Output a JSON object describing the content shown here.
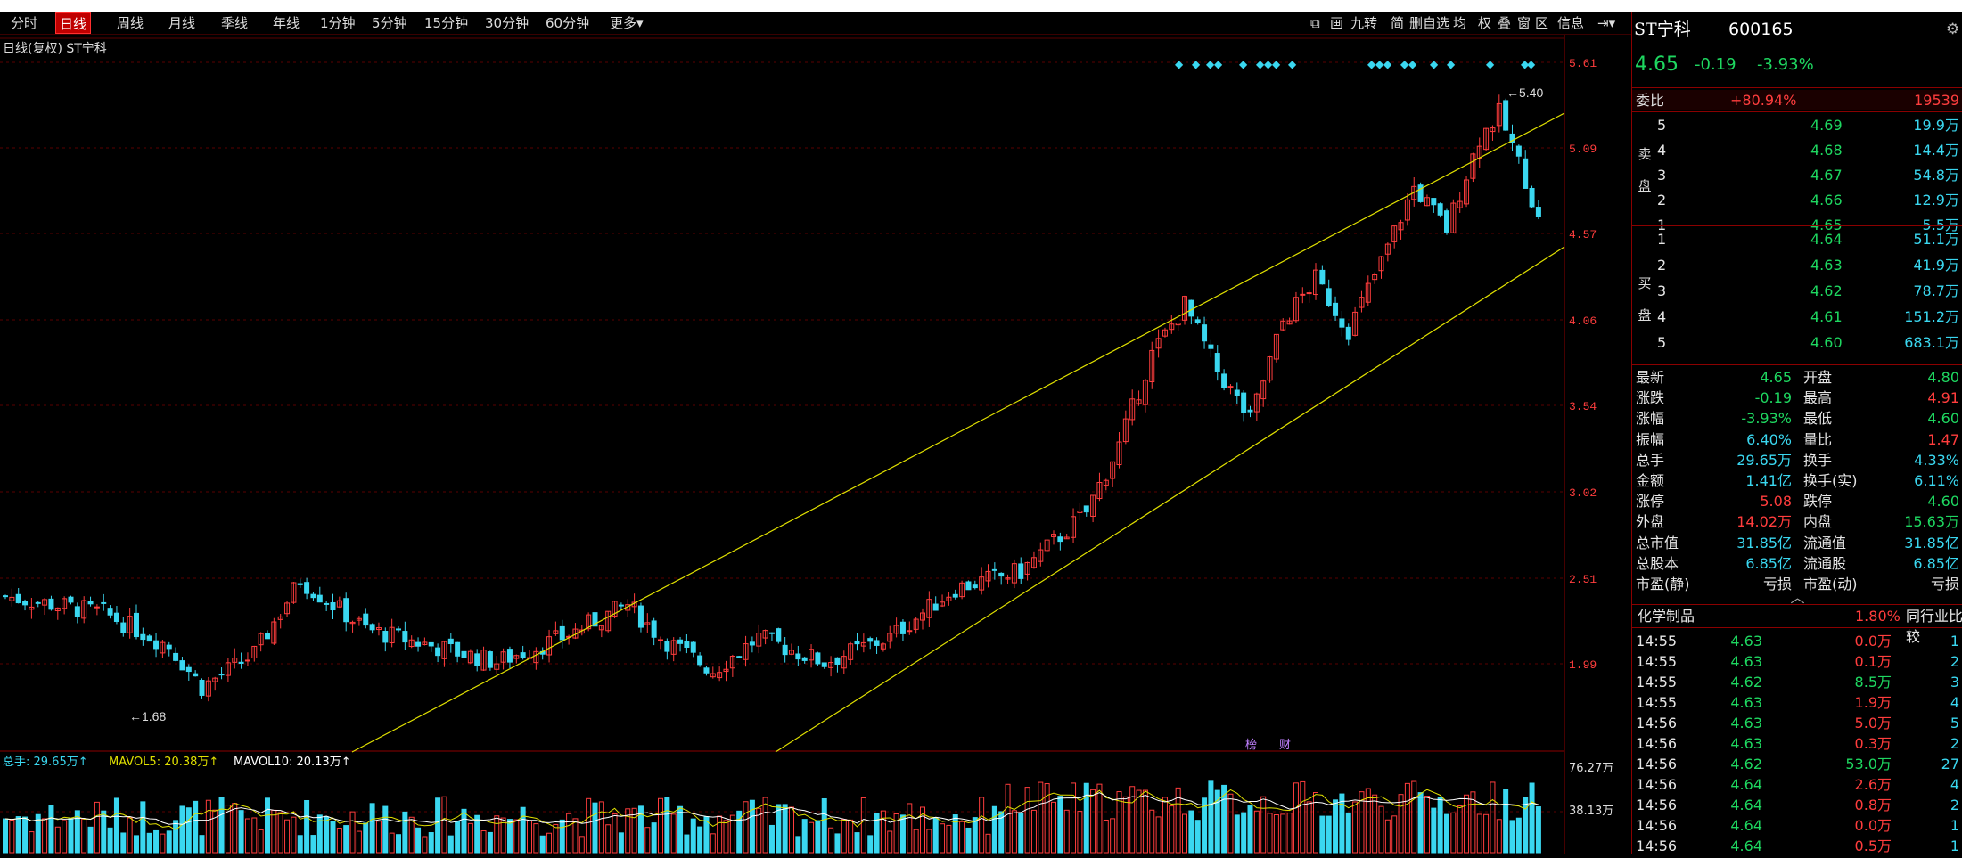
{
  "colors": {
    "up": "#ff3d3d",
    "down": "#3ad7f0",
    "bg": "#000000",
    "grid": "#5a0000",
    "channel": "#e0e000",
    "accent_red": "#c00000"
  },
  "toolbar": {
    "periods": [
      "分时",
      "日线",
      "周线",
      "月线",
      "季线",
      "年线",
      "1分钟",
      "5分钟",
      "15分钟",
      "30分钟",
      "60分钟",
      "更多▾"
    ],
    "active_period": "日线",
    "right_tools": [
      "画",
      "九转",
      "简",
      "删自选",
      "均",
      "权",
      "叠",
      "窗",
      "区",
      "信息"
    ]
  },
  "chart": {
    "title": "日线(复权) ST宁科",
    "y_ticks": [
      "5.61",
      "5.09",
      "4.57",
      "4.06",
      "3.54",
      "3.02",
      "2.51",
      "1.99"
    ],
    "high_label": "5.40",
    "low_label": "1.68",
    "markers": [
      "榜",
      "财"
    ]
  },
  "volume": {
    "label_total": "总手: 29.65万",
    "label_ma5": "MAVOL5: 20.38万",
    "label_ma10": "MAVOL10: 20.13万",
    "y_ticks": [
      "76.27万",
      "38.13万"
    ]
  },
  "chart_data": {
    "type": "candlestick",
    "title": "日线(复权) ST宁科",
    "ylim": [
      1.68,
      5.61
    ],
    "channel": "upward",
    "low": 1.68,
    "high": 5.4
  },
  "quote": {
    "name": "ST宁科",
    "code": "600165",
    "price": "4.65",
    "change": "-0.19",
    "change_pct": "-3.93%",
    "webi_label": "委比",
    "webi_pct": "+80.94%",
    "webi_diff": "19539",
    "sell_label": [
      "卖",
      "盘"
    ],
    "buy_label": [
      "买",
      "盘"
    ],
    "sells": [
      {
        "n": "5",
        "p": "4.69",
        "v": "19.9万"
      },
      {
        "n": "4",
        "p": "4.68",
        "v": "14.4万"
      },
      {
        "n": "3",
        "p": "4.67",
        "v": "54.8万"
      },
      {
        "n": "2",
        "p": "4.66",
        "v": "12.9万"
      },
      {
        "n": "1",
        "p": "4.65",
        "v": "5.5万"
      }
    ],
    "buys": [
      {
        "n": "1",
        "p": "4.64",
        "v": "51.1万"
      },
      {
        "n": "2",
        "p": "4.63",
        "v": "41.9万"
      },
      {
        "n": "3",
        "p": "4.62",
        "v": "78.7万"
      },
      {
        "n": "4",
        "p": "4.61",
        "v": "151.2万"
      },
      {
        "n": "5",
        "p": "4.60",
        "v": "683.1万"
      }
    ],
    "stats": [
      {
        "l1": "最新",
        "v1": "4.65",
        "c1": "g",
        "l2": "开盘",
        "v2": "4.80",
        "c2": "g"
      },
      {
        "l1": "涨跌",
        "v1": "-0.19",
        "c1": "g",
        "l2": "最高",
        "v2": "4.91",
        "c2": "r"
      },
      {
        "l1": "涨幅",
        "v1": "-3.93%",
        "c1": "g",
        "l2": "最低",
        "v2": "4.60",
        "c2": "g"
      },
      {
        "l1": "振幅",
        "v1": "6.40%",
        "c1": "c",
        "l2": "量比",
        "v2": "1.47",
        "c2": "r"
      },
      {
        "l1": "总手",
        "v1": "29.65万",
        "c1": "c",
        "l2": "换手",
        "v2": "4.33%",
        "c2": "c"
      },
      {
        "l1": "金额",
        "v1": "1.41亿",
        "c1": "c",
        "l2": "换手(实)",
        "v2": "6.11%",
        "c2": "c"
      },
      {
        "l1": "涨停",
        "v1": "5.08",
        "c1": "r",
        "l2": "跌停",
        "v2": "4.60",
        "c2": "g"
      },
      {
        "l1": "外盘",
        "v1": "14.02万",
        "c1": "r",
        "l2": "内盘",
        "v2": "15.63万",
        "c2": "g"
      },
      {
        "l1": "总市值",
        "v1": "31.85亿",
        "c1": "c",
        "l2": "流通值",
        "v2": "31.85亿",
        "c2": "c"
      },
      {
        "l1": "总股本",
        "v1": "6.85亿",
        "c1": "c",
        "l2": "流通股",
        "v2": "6.85亿",
        "c2": "c"
      },
      {
        "l1": "市盈(静)",
        "v1": "亏损",
        "c1": "w",
        "l2": "市盈(动)",
        "v2": "亏损",
        "c2": "w"
      }
    ],
    "industry": "化学制品",
    "industry_pct": "1.80%",
    "industry_btn": "同行业比较",
    "ticks": [
      {
        "t": "14:55",
        "p": "4.63",
        "v": "0.0万",
        "n": "1",
        "vc": "r"
      },
      {
        "t": "14:55",
        "p": "4.63",
        "v": "0.1万",
        "n": "2",
        "vc": "r"
      },
      {
        "t": "14:55",
        "p": "4.62",
        "v": "8.5万",
        "n": "3",
        "vc": "g"
      },
      {
        "t": "14:55",
        "p": "4.63",
        "v": "1.9万",
        "n": "4",
        "vc": "r"
      },
      {
        "t": "14:56",
        "p": "4.63",
        "v": "5.0万",
        "n": "5",
        "vc": "r"
      },
      {
        "t": "14:56",
        "p": "4.63",
        "v": "0.3万",
        "n": "2",
        "vc": "r"
      },
      {
        "t": "14:56",
        "p": "4.62",
        "v": "53.0万",
        "n": "27",
        "vc": "g"
      },
      {
        "t": "14:56",
        "p": "4.64",
        "v": "2.6万",
        "n": "4",
        "vc": "r"
      },
      {
        "t": "14:56",
        "p": "4.64",
        "v": "0.8万",
        "n": "2",
        "vc": "r"
      },
      {
        "t": "14:56",
        "p": "4.64",
        "v": "0.0万",
        "n": "1",
        "vc": "r"
      },
      {
        "t": "14:56",
        "p": "4.64",
        "v": "0.5万",
        "n": "1",
        "vc": "r"
      }
    ]
  }
}
